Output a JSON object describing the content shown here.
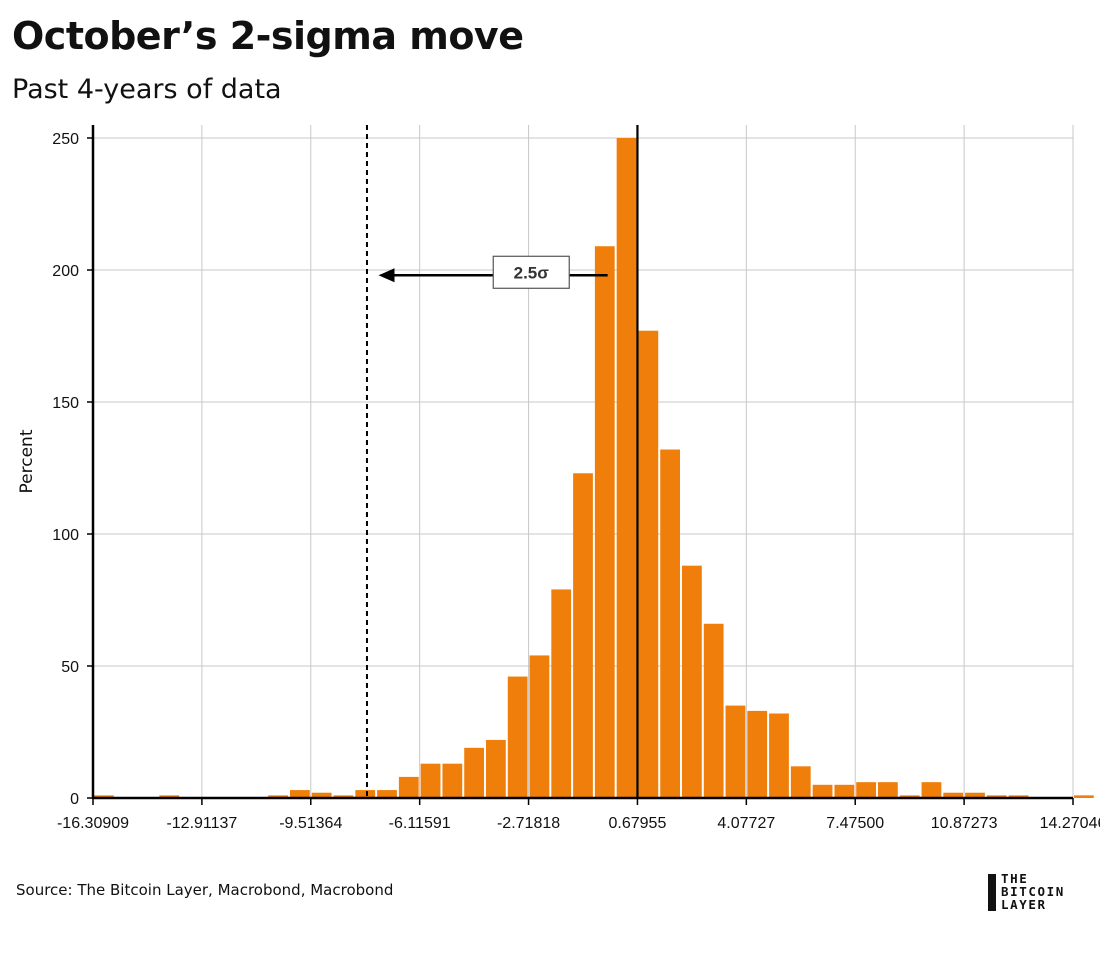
{
  "header": {
    "title": "October’s 2-sigma move",
    "subtitle": "Past 4-years of data"
  },
  "footer": {
    "source": "Source: The Bitcoin Layer, Macrobond, Macrobond",
    "logo_lines": [
      "THE",
      "BITCOIN",
      "LAYER"
    ]
  },
  "colors": {
    "bar": "#F07E0A",
    "grid": "#c8c8c8",
    "axis": "#000000"
  },
  "chart_data": {
    "type": "bar",
    "title": "October’s 2-sigma move",
    "subtitle": "Past 4-years of data",
    "xlabel": "",
    "ylabel": "Percent",
    "grid": true,
    "bin_start": -16.30909,
    "bin_width": 0.679545,
    "xlim": [
      -16.30909,
      14.27046
    ],
    "ylim": [
      0,
      250
    ],
    "yticks": [
      0,
      50,
      100,
      150,
      200,
      250
    ],
    "xticks": [
      -16.30909,
      -12.91137,
      -9.51364,
      -6.11591,
      -2.71818,
      0.67955,
      4.07727,
      7.475,
      10.87273,
      14.27046
    ],
    "xtick_labels": [
      "-16.30909",
      "-12.91137",
      "-9.51364",
      "-6.11591",
      "-2.71818",
      "0.67955",
      "4.07727",
      "7.47500",
      "10.87273",
      "14.27046"
    ],
    "values": [
      1,
      0,
      0,
      1,
      0,
      0,
      0,
      0,
      1,
      3,
      2,
      1,
      3,
      3,
      8,
      13,
      13,
      19,
      22,
      46,
      54,
      79,
      123,
      209,
      250,
      177,
      132,
      88,
      66,
      35,
      33,
      32,
      12,
      5,
      5,
      6,
      6,
      1,
      6,
      2,
      2,
      1,
      1,
      0,
      0,
      1
    ],
    "mean_line_x": 0.67955,
    "sigma_line_x": -7.76,
    "annotation": {
      "label": "2.5σ",
      "arrow_from_x": -0.25,
      "arrow_to_x": -7.4,
      "y": 198
    }
  }
}
